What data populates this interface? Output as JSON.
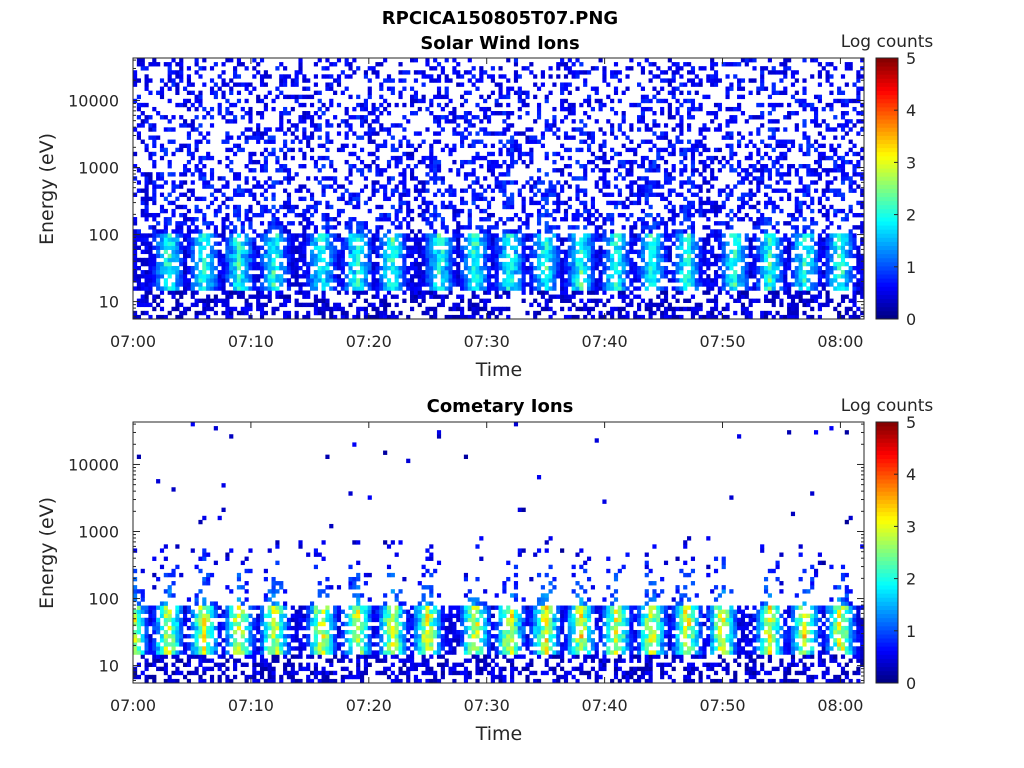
{
  "figure": {
    "title": "RPCICA150805T07.PNG"
  },
  "chart_data": [
    {
      "type": "heatmap",
      "title": "Solar Wind Ions",
      "xlabel": "Time",
      "ylabel": "Energy (eV)",
      "x_ticks": [
        "07:00",
        "07:10",
        "07:20",
        "07:30",
        "07:40",
        "07:50",
        "08:00"
      ],
      "xlim": [
        "07:00",
        "08:02"
      ],
      "y_ticks": [
        "10",
        "100",
        "1000",
        "10000"
      ],
      "y_scale": "log",
      "ylim": [
        5.5,
        43000
      ],
      "colorbar": {
        "label": "Log counts",
        "ticks": [
          "0",
          "1",
          "2",
          "3",
          "4",
          "5"
        ],
        "range": [
          0,
          5
        ],
        "colormap": "jet"
      },
      "pattern": {
        "background_level_logcounts": 0.3,
        "low_energy_band_eV": [
          15,
          80
        ],
        "band_peak_logcounts": 2.0,
        "burst_times": [
          "07:03",
          "07:06",
          "07:09",
          "07:12",
          "07:16",
          "07:19",
          "07:22",
          "07:26",
          "07:29",
          "07:32",
          "07:35",
          "07:38",
          "07:41",
          "07:44",
          "07:47",
          "07:51",
          "07:54",
          "07:57",
          "08:00"
        ]
      }
    },
    {
      "type": "heatmap",
      "title": "Cometary Ions",
      "xlabel": "Time",
      "ylabel": "Energy (eV)",
      "x_ticks": [
        "07:00",
        "07:10",
        "07:20",
        "07:30",
        "07:40",
        "07:50",
        "08:00"
      ],
      "xlim": [
        "07:00",
        "08:02"
      ],
      "y_ticks": [
        "10",
        "100",
        "1000",
        "10000"
      ],
      "y_scale": "log",
      "ylim": [
        5.5,
        43000
      ],
      "colorbar": {
        "label": "Log counts",
        "ticks": [
          "0",
          "1",
          "2",
          "3",
          "4",
          "5"
        ],
        "range": [
          0,
          5
        ],
        "colormap": "jet"
      },
      "pattern": {
        "background_level_logcounts": 0.1,
        "low_energy_band_eV": [
          15,
          60
        ],
        "band_peak_logcounts": 3.2,
        "burst_times": [
          "07:00",
          "07:03",
          "07:06",
          "07:09",
          "07:12",
          "07:16",
          "07:19",
          "07:22",
          "07:25",
          "07:29",
          "07:32",
          "07:35",
          "07:38",
          "07:41",
          "07:44",
          "07:47",
          "07:50",
          "07:54",
          "07:57",
          "08:00"
        ]
      }
    }
  ]
}
